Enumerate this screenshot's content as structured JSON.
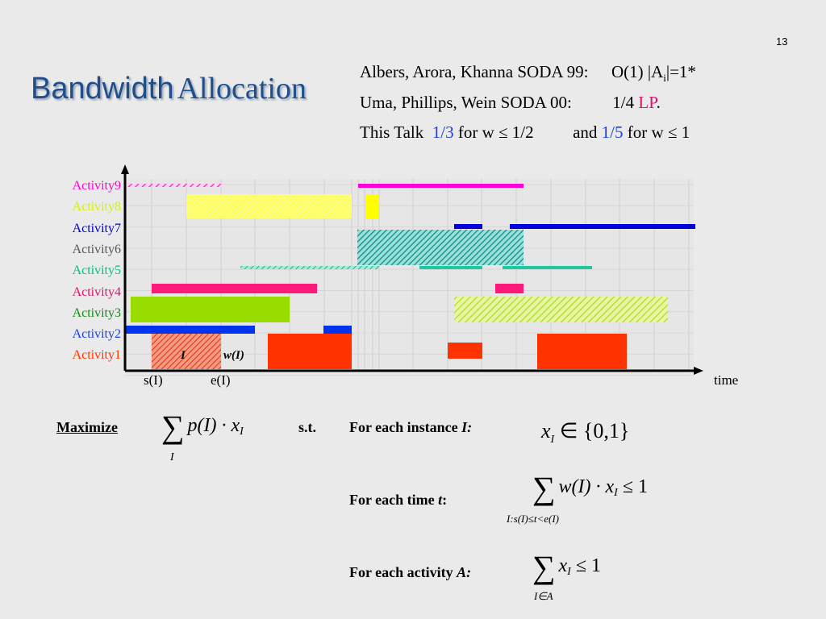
{
  "slide_number": "13",
  "title": {
    "part1": "Bandwidth",
    "part2": "Allocation"
  },
  "references": [
    {
      "left": "Albers, Arora, Khanna SODA 99:",
      "right_pre": "O(1) |A",
      "right_sub": "i",
      "right_post": "|=1*"
    },
    {
      "left": "Uma, Phillips, Wein SODA 00:",
      "right_pre": "1/4 ",
      "right_lp": "LP",
      "right_post": "."
    },
    {
      "left": "This Talk",
      "ratio1": "1/3",
      "cond1": "for w ≤ 1/2",
      "and": "and",
      "ratio2": "1/5",
      "cond2": "for w ≤ 1"
    }
  ],
  "colors": {
    "title": "#1f4e8c",
    "red": "#e0106a",
    "blue": "#1a3fe0"
  },
  "activities": [
    {
      "label": "Activity9",
      "color": "#ff00cc"
    },
    {
      "label": "Activity8",
      "color": "#d6f000"
    },
    {
      "label": "Activity7",
      "color": "#0000cc"
    },
    {
      "label": "Activity6",
      "color": "#555555"
    },
    {
      "label": "Activity5",
      "color": "#00c08a"
    },
    {
      "label": "Activity4",
      "color": "#e0106a"
    },
    {
      "label": "Activity3",
      "color": "#128a12"
    },
    {
      "label": "Activity2",
      "color": "#1a3fe0"
    },
    {
      "label": "Activity1",
      "color": "#ff3300"
    }
  ],
  "axis": {
    "time_label": "time",
    "s_label": "s(I)",
    "e_label": "e(I)",
    "instance_label": "I",
    "width_label": "w(I)"
  },
  "lp": {
    "maximize": "Maximize",
    "objective": "p(I) · x",
    "objective_sub": "I",
    "sum_index": "I",
    "st": "s.t.",
    "constraint1_label": "For each instance ",
    "constraint1_var": "I:",
    "constraint1_formula": "x",
    "constraint1_sub": "I",
    "constraint1_rhs": " ∈ {0,1}",
    "constraint2_label": "For each time ",
    "constraint2_var": "t",
    "constraint2_colon": ":",
    "constraint2_formula": "w(I) · x",
    "constraint2_sub": "I",
    "constraint2_rhs": " ≤ 1",
    "constraint2_index": "I:s(I)≤t<e(I)",
    "constraint3_label": "For each activity ",
    "constraint3_var": "A:",
    "constraint3_formula": "x",
    "constraint3_sub": "I",
    "constraint3_rhs": " ≤ 1",
    "constraint3_index": "I∈A"
  }
}
